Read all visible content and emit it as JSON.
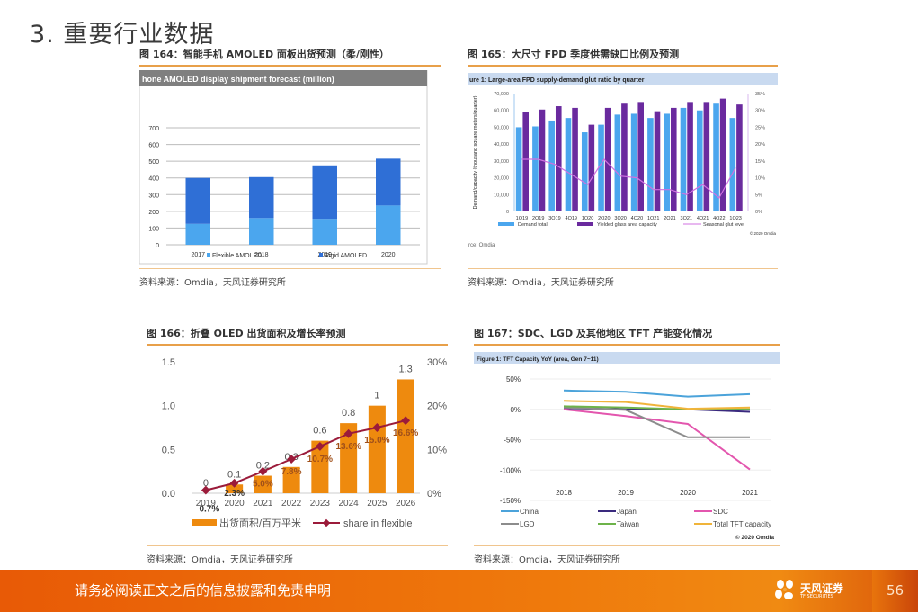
{
  "page": {
    "title": "3. 重要行业数据",
    "footer_disclaimer": "请务必阅读正文之后的信息披露和免责申明",
    "logo_text": "天风证券",
    "logo_subtext": "TF SECURITIES",
    "page_number": "56",
    "colors": {
      "accent": "#E8A04A",
      "footer": "#EF7A0C"
    }
  },
  "figures": [
    {
      "caption": "图 164：智能手机 AMOLED 面板出货预测（柔/刚性）",
      "source": "资料来源：Omdia，天风证券研究所"
    },
    {
      "caption": "图 165：大尺寸 FPD 季度供需缺口比例及预测",
      "source": "资料来源：Omdia，天风证券研究所"
    },
    {
      "caption": "图 166：折叠 OLED 出货面积及增长率预测",
      "source": "资料来源：Omdia，天风证券研究所"
    },
    {
      "caption": "图 167：SDC、LGD 及其他地区 TFT 产能变化情况",
      "source": "资料来源：Omdia，天风证券研究所"
    }
  ],
  "chart_data": [
    {
      "type": "bar",
      "stacked": true,
      "title": "hone AMOLED display shipment forecast (million)",
      "categories": [
        "2017",
        "2018",
        "2019",
        "2020"
      ],
      "series": [
        {
          "name": "Flexible AMOLED",
          "color": "#4BA6EE",
          "values": [
            125,
            160,
            155,
            235
          ]
        },
        {
          "name": "Rigid AMOLED",
          "color": "#2F6FD6",
          "values": [
            275,
            245,
            320,
            280
          ]
        }
      ],
      "yticks": [
        "0",
        "100",
        "200",
        "300",
        "400",
        "500",
        "600",
        "700"
      ],
      "ylim": [
        0,
        700
      ],
      "grid": true,
      "legend": "bottom"
    },
    {
      "type": "bar",
      "title": "ure 1: Large-area FPD supply-demand glut ratio by quarter",
      "categories": [
        "1Q19",
        "2Q19",
        "3Q19",
        "4Q19",
        "1Q20",
        "2Q20",
        "3Q20",
        "4Q20",
        "1Q21",
        "2Q21",
        "3Q21",
        "4Q21",
        "4Q22",
        "1Q23"
      ],
      "series": [
        {
          "name": "Demand total",
          "color": "#4BA6EE",
          "axis": "left",
          "values": [
            50000,
            50500,
            54000,
            55500,
            47000,
            51500,
            57500,
            58000,
            55500,
            58000,
            61500,
            60000,
            64000,
            55500
          ]
        },
        {
          "name": "Yielded glass area capacity",
          "color": "#6A2A9E",
          "axis": "left",
          "values": [
            59000,
            60500,
            62500,
            61500,
            51500,
            61500,
            64000,
            65000,
            59500,
            61500,
            65000,
            65000,
            67000,
            63500
          ]
        },
        {
          "name": "Seasonal glut level",
          "color": "#D070E0",
          "axis": "right",
          "type": "line",
          "values": [
            15.5,
            15.5,
            14,
            11,
            8,
            15.5,
            10.5,
            10,
            6.5,
            6.5,
            5,
            8,
            4,
            13
          ]
        }
      ],
      "ylabel": "Demand/capacity (thousand square meters/quarter)",
      "y2label": "Glut (% supply/demand)",
      "yticks": [
        "0",
        "10,000",
        "20,000",
        "30,000",
        "40,000",
        "50,000",
        "60,000",
        "70,000"
      ],
      "y2ticks": [
        "0%",
        "5%",
        "10%",
        "15%",
        "20%",
        "25%",
        "30%",
        "35%"
      ],
      "ylim": [
        0,
        70000
      ],
      "y2lim": [
        0,
        35
      ],
      "copyright": "© 2020 Omdia",
      "source_note": "rce: Omdia",
      "legend": "bottom"
    },
    {
      "type": "bar",
      "title": "",
      "categories": [
        "2019",
        "2020",
        "2021",
        "2022",
        "2023",
        "2024",
        "2025",
        "2026"
      ],
      "series": [
        {
          "name": "出货面积/百万平米",
          "color": "#EE8A0E",
          "axis": "left",
          "values": [
            0,
            0.1,
            0.2,
            0.3,
            0.6,
            0.8,
            1,
            1.3
          ],
          "labels": [
            "0",
            "0.1",
            "0.2",
            "0.3",
            "0.6",
            "0.8",
            "1",
            "1.3"
          ]
        },
        {
          "name": "share in flexible",
          "color": "#9B1B3A",
          "axis": "right",
          "type": "line",
          "values": [
            0.7,
            2.3,
            5.0,
            7.8,
            10.7,
            13.6,
            15.0,
            16.6
          ],
          "labels": [
            "0.7%",
            "2.3%",
            "5.0%",
            "7.8%",
            "10.7%",
            "13.6%",
            "15.0%",
            "16.6%"
          ]
        }
      ],
      "yticks": [
        "0.0",
        "0.5",
        "1.0",
        "1.5"
      ],
      "y2ticks": [
        "0%",
        "10%",
        "20%",
        "30%"
      ],
      "ylim": [
        0,
        1.5
      ],
      "y2lim": [
        0,
        30
      ],
      "legend": "bottom"
    },
    {
      "type": "line",
      "title": "Figure 1: TFT Capacity YoY (area, Gen 7~11)",
      "categories": [
        "2018",
        "2019",
        "2020",
        "2021"
      ],
      "series": [
        {
          "name": "China",
          "color": "#4BA3DA",
          "values": [
            31,
            29,
            21,
            25
          ]
        },
        {
          "name": "Japan",
          "color": "#3A2A7E",
          "values": [
            2,
            0,
            0,
            -4
          ]
        },
        {
          "name": "SDC",
          "color": "#E356AE",
          "values": [
            0,
            -11,
            -24,
            -99
          ]
        },
        {
          "name": "LGD",
          "color": "#8C8C8C",
          "values": [
            3,
            -1,
            -46,
            -46
          ]
        },
        {
          "name": "Taiwan",
          "color": "#6DB34A",
          "values": [
            5,
            3,
            0,
            0
          ]
        },
        {
          "name": "Total TFT capacity",
          "color": "#F0B43A",
          "values": [
            14,
            12,
            1,
            3
          ]
        }
      ],
      "yticks": [
        "-150%",
        "-100%",
        "-50%",
        "0%",
        "50%"
      ],
      "ylim": [
        -150,
        50
      ],
      "grid": true,
      "copyright": "© 2020 Omdia",
      "legend": "bottom"
    }
  ]
}
